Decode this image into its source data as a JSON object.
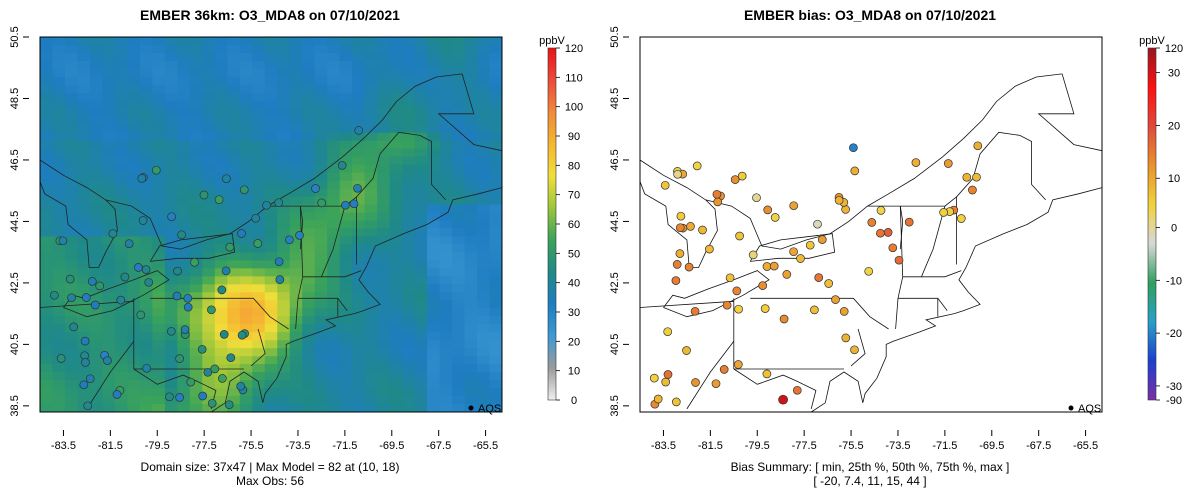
{
  "left": {
    "title": "EMBER 36km: O3_MDA8 on 07/10/2021",
    "unit": "ppbV",
    "footer_line1": "Domain size: 37x47 | Max Model = 82 at (10, 18)",
    "footer_line2": "Max Obs: 56",
    "legend_label": "AQS",
    "x_ticks": [
      "-83.5",
      "-81.5",
      "-79.5",
      "-77.5",
      "-75.5",
      "-73.5",
      "-71.5",
      "-69.5",
      "-67.5",
      "-65.5"
    ],
    "y_ticks": [
      "38.5",
      "40.5",
      "42.5",
      "44.5",
      "46.5",
      "48.5",
      "50.5"
    ],
    "cb_ticks": [
      "0",
      "10",
      "20",
      "30",
      "40",
      "50",
      "60",
      "70",
      "80",
      "90",
      "100",
      "110",
      "120"
    ]
  },
  "right": {
    "title": "EMBER bias: O3_MDA8 on 07/10/2021",
    "unit": "ppbV",
    "footer_line1": "Bias Summary: [ min, 25th %, 50th %, 75th %, max ]",
    "footer_line2": "[ -20,  7.4,  11,  15,  44 ]",
    "legend_label": "AQS",
    "x_ticks": [
      "-83.5",
      "-81.5",
      "-79.5",
      "-77.5",
      "-75.5",
      "-73.5",
      "-71.5",
      "-69.5",
      "-67.5",
      "-65.5"
    ],
    "y_ticks": [
      "38.5",
      "40.5",
      "42.5",
      "44.5",
      "46.5",
      "48.5",
      "50.5"
    ],
    "cb_ticks": [
      "-90",
      "-30",
      "-20",
      "-10",
      "0",
      "10",
      "20",
      "30",
      "120"
    ]
  },
  "colors": {
    "ramp_o3": [
      "#f0f0f0",
      "#9a9a9a",
      "#3d9ad4",
      "#1e7dc1",
      "#1f8a86",
      "#3aa35a",
      "#9cc63a",
      "#f0de3a",
      "#f5b731",
      "#f08a3a",
      "#ec4a3a",
      "#e81416"
    ],
    "ramp_bias": [
      "#7a2fa6",
      "#1a3fd0",
      "#2aa0c8",
      "#30a060",
      "#d8d8d8",
      "#f2d23a",
      "#e9922e",
      "#e04a3a",
      "#ff1010",
      "#9a1620"
    ]
  }
}
